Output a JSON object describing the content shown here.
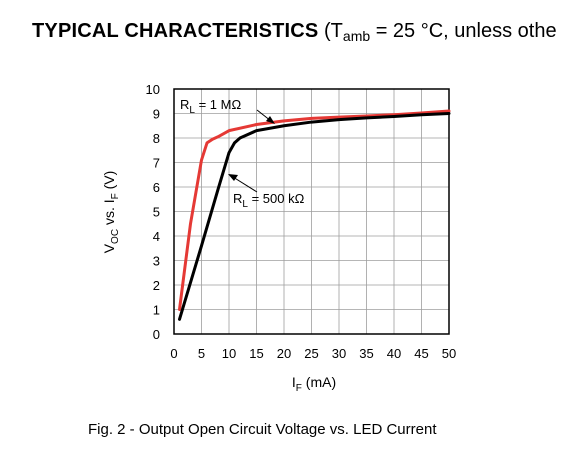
{
  "heading": {
    "bold": "TYPICAL CHARACTERISTICS",
    "open": " (T",
    "sub": "amb",
    "rest": " = 25 °C, unless othe"
  },
  "caption": "Fig. 2 - Output Open Circuit Voltage vs. LED Current",
  "chart_data": {
    "type": "line",
    "xlabel": {
      "main": "I",
      "sub": "F",
      "suffix": " (mA)"
    },
    "ylabel": {
      "p1": "V",
      "s1": "OC",
      "p2": " vs. I",
      "s2": "F",
      "p3": " (V)"
    },
    "xlim": [
      0,
      50
    ],
    "ylim": [
      0,
      10
    ],
    "xticks": [
      0,
      5,
      10,
      15,
      20,
      25,
      30,
      35,
      40,
      45,
      50
    ],
    "yticks": [
      0,
      1,
      2,
      3,
      4,
      5,
      6,
      7,
      8,
      9,
      10
    ],
    "grid": true,
    "series": [
      {
        "name": "RL = 1 MΩ",
        "label": {
          "main": "R",
          "sub": "L",
          "suffix": " = 1 MΩ"
        },
        "color": "#e53935",
        "x": [
          1,
          3,
          5,
          6,
          7,
          8,
          10,
          15,
          20,
          25,
          30,
          35,
          40,
          45,
          50
        ],
        "y": [
          1.0,
          4.5,
          7.1,
          7.8,
          7.95,
          8.05,
          8.3,
          8.55,
          8.7,
          8.8,
          8.85,
          8.9,
          8.95,
          9.02,
          9.1
        ]
      },
      {
        "name": "RL = 500 kΩ",
        "label": {
          "main": "R",
          "sub": "L",
          "suffix": " = 500 kΩ"
        },
        "color": "#000000",
        "x": [
          1,
          5,
          8,
          10,
          11,
          12,
          15,
          20,
          25,
          30,
          35,
          40,
          45,
          50
        ],
        "y": [
          0.6,
          3.6,
          5.9,
          7.4,
          7.8,
          8.0,
          8.3,
          8.5,
          8.65,
          8.75,
          8.82,
          8.88,
          8.95,
          9.0
        ]
      }
    ]
  }
}
